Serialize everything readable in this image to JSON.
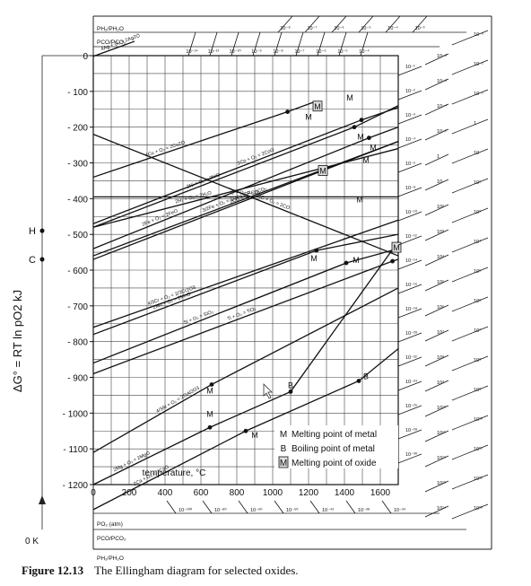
{
  "caption": {
    "label": "Figure 12.13",
    "text": "The Ellingham diagram for selected oxides."
  },
  "chart_data": {
    "type": "line",
    "title": "",
    "xlabel": "temperature, °C",
    "ylabel": "ΔG° = RT ln pO2 kJ",
    "xlim": [
      0,
      1700
    ],
    "ylim": [
      -1200,
      0
    ],
    "grid": true,
    "x_ticks": [
      0,
      200,
      400,
      600,
      800,
      1000,
      1200,
      1400,
      1600
    ],
    "y_ticks": [
      0,
      -100,
      -200,
      -300,
      -400,
      -500,
      -600,
      -700,
      -800,
      -900,
      -1000,
      -1100,
      -1200
    ],
    "series": [
      {
        "name": "4Ag + O2 = 2Ag2O",
        "x": [
          0,
          230
        ],
        "y": [
          -2,
          40
        ]
      },
      {
        "name": "4Cu + O2 = 2Cu2O",
        "x": [
          0,
          1083,
          1230
        ],
        "y": [
          -340,
          -157,
          -130
        ]
      },
      {
        "name": "2Ni + O2 = 2NiO",
        "x": [
          0,
          1455,
          1700
        ],
        "y": [
          -480,
          -200,
          -140
        ]
      },
      {
        "name": "2CO + O2 = 2CO2",
        "x": [
          0,
          1700
        ],
        "y": [
          -570,
          -240
        ]
      },
      {
        "name": "2Co + O2 = 2CoO",
        "x": [
          0,
          1495,
          1700
        ],
        "y": [
          -470,
          -180,
          -145
        ]
      },
      {
        "name": "2Fe + O2 = 2FeO",
        "x": [
          0,
          1537,
          1700
        ],
        "y": [
          -540,
          -230,
          -200
        ]
      },
      {
        "name": "2H2 + O2 = 2H2O",
        "x": [
          0,
          1700
        ],
        "y": [
          -480,
          -260
        ]
      },
      {
        "name": "3/2Fe + O2 = 1/2Fe3O4",
        "x": [
          0,
          1700
        ],
        "y": [
          -560,
          -240
        ]
      },
      {
        "name": "C + O2 = CO2",
        "x": [
          0,
          1700
        ],
        "y": [
          -395,
          -395
        ]
      },
      {
        "name": "2C + O2 = 2CO",
        "x": [
          0,
          1700
        ],
        "y": [
          -220,
          -560
        ]
      },
      {
        "name": "4/3Cr + O2 = 2/3Cr2O3",
        "x": [
          0,
          1700
        ],
        "y": [
          -760,
          -460
        ]
      },
      {
        "name": "2Mn + O2 = 2MnO",
        "x": [
          0,
          1244,
          1700
        ],
        "y": [
          -780,
          -545,
          -500
        ]
      },
      {
        "name": "Si + O2 = SiO2",
        "x": [
          0,
          1410,
          1700
        ],
        "y": [
          -860,
          -580,
          -540
        ]
      },
      {
        "name": "Ti + O2 = TiO2",
        "x": [
          0,
          1668,
          1700
        ],
        "y": [
          -890,
          -575,
          -570
        ]
      },
      {
        "name": "4/3Al + O2 = 2/3Al2O3",
        "x": [
          0,
          660,
          1700
        ],
        "y": [
          -1110,
          -920,
          -650
        ]
      },
      {
        "name": "2Mg + O2 = 2MgO",
        "x": [
          0,
          650,
          1100,
          1700
        ],
        "y": [
          -1200,
          -1040,
          -940,
          -520
        ]
      },
      {
        "name": "2Ca + O2 = 2CaO",
        "x": [
          0,
          850,
          1480,
          1700
        ],
        "y": [
          -1270,
          -1050,
          -910,
          -820
        ]
      }
    ],
    "annotations": [
      {
        "text": "M",
        "x": 1200,
        "y": -180
      },
      {
        "text": "M",
        "x": 1430,
        "y": -125
      },
      {
        "text": "M",
        "x": 1490,
        "y": -235
      },
      {
        "text": "M",
        "x": 1560,
        "y": -265
      },
      {
        "text": "M",
        "x": 1520,
        "y": -300
      },
      {
        "text": "M",
        "x": 1485,
        "y": -410
      },
      {
        "text": "M",
        "x": 1230,
        "y": -575
      },
      {
        "text": "M",
        "x": 1465,
        "y": -580
      },
      {
        "text": "M",
        "x": 650,
        "y": -945
      },
      {
        "text": "M",
        "x": 650,
        "y": -1010
      },
      {
        "text": "M",
        "x": 900,
        "y": -1070
      },
      {
        "text": "B",
        "x": 1100,
        "y": -930
      },
      {
        "text": "B",
        "x": 1520,
        "y": -905
      }
    ],
    "oxide_markers": [
      {
        "text": "M",
        "x": 1250,
        "y": -150
      },
      {
        "text": "M",
        "x": 1280,
        "y": -330
      },
      {
        "text": "M",
        "x": 1690,
        "y": -545
      }
    ],
    "left_markers": [
      {
        "text": "H",
        "y": -490
      },
      {
        "text": "C",
        "y": -570
      },
      {
        "text": "0 K",
        "y": -1340
      }
    ],
    "legend": {
      "placement": "bottom-right",
      "entries": [
        {
          "symbol": "M",
          "boxed": false,
          "text": "Melting point of metal"
        },
        {
          "symbol": "B",
          "boxed": false,
          "text": "Boiling point of metal"
        },
        {
          "symbol": "M",
          "boxed": true,
          "text": "Melting point of oxide"
        }
      ]
    },
    "scale_labels": {
      "top_ratio_1": "PH2/PH2O",
      "top_ratio_2": "PCO/PCO2",
      "bottom_po2": "PO2 (atm)",
      "bottom_ratio_1": "PCO/PCO2",
      "bottom_ratio_2": "PH2/PH2O",
      "top_po2_ticks": [
        "10^-14",
        "10^-12",
        "10^-10",
        "10^-9",
        "10^-8",
        "10^-7",
        "10^-6",
        "10^-5",
        "10^-4"
      ],
      "top_ratio_ticks": [
        "10^-8",
        "10^-7",
        "10^-6",
        "10^-5",
        "10^-4",
        "10^-3"
      ],
      "bottom_po2_ticks": [
        "10^-100",
        "10^-80",
        "10^-60",
        "10^-50",
        "10^-42",
        "10^-38",
        "10^-34"
      ],
      "right_po2_ticks": [
        "10^-1",
        "10^-2",
        "10^-3",
        "10^-4",
        "10^-6",
        "10^-8",
        "10^-10",
        "10^-12",
        "10^-14",
        "10^-16",
        "10^-18",
        "10^-20",
        "10^-22",
        "10^-24",
        "10^-26",
        "10^-28",
        "10^-30"
      ],
      "right_ratio_ticks_1": [
        "10^-8",
        "10^-6",
        "10^-4",
        "10^-2",
        "1",
        "10",
        "10^2",
        "10^3",
        "10^4",
        "10^5",
        "10^6",
        "10^7",
        "10^8",
        "10^9",
        "10^10",
        "10^11",
        "10^12",
        "10^13",
        "10^14"
      ],
      "right_ratio_ticks_2": [
        "10^-3",
        "10^-2",
        "10^-1",
        "1",
        "10",
        "10^2",
        "10^3",
        "10^4",
        "10^5",
        "10^6",
        "10^7",
        "10^8",
        "10^9",
        "10^10",
        "10^11",
        "10^12",
        "10^13"
      ]
    }
  }
}
